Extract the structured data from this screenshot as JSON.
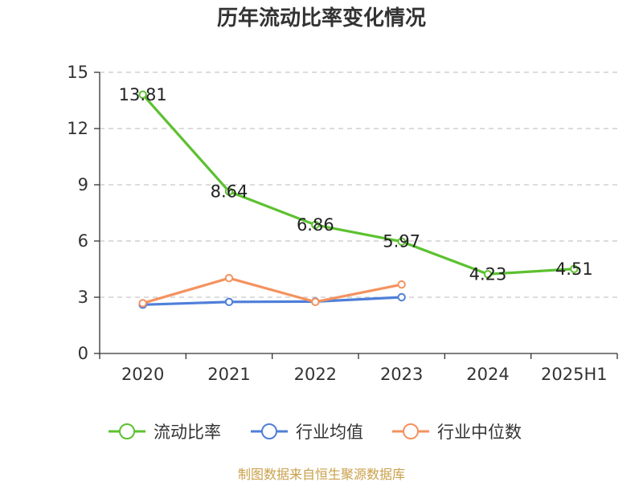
{
  "chart_data": {
    "type": "line",
    "title": "历年流动比率变化情况",
    "categories": [
      "2020",
      "2021",
      "2022",
      "2023",
      "2024",
      "2025H1"
    ],
    "ylim": [
      0,
      15
    ],
    "yticks": [
      0,
      3,
      6,
      9,
      12,
      15
    ],
    "grid": true,
    "legend_position": "bottom",
    "series": [
      {
        "name": "流动比率",
        "color": "#5cc130",
        "values": [
          13.81,
          8.64,
          6.86,
          5.97,
          4.23,
          4.51
        ],
        "data_labels": [
          "13.81",
          "8.64",
          "6.86",
          "5.97",
          "4.23",
          "4.51"
        ]
      },
      {
        "name": "行业均值",
        "color": "#4f7fd9",
        "values": [
          2.6,
          2.75,
          2.77,
          3.0,
          null,
          null
        ]
      },
      {
        "name": "行业中位数",
        "color": "#f4925f",
        "values": [
          2.68,
          4.02,
          2.75,
          3.68,
          null,
          null
        ]
      }
    ],
    "source": "制图数据来自恒生聚源数据库"
  }
}
